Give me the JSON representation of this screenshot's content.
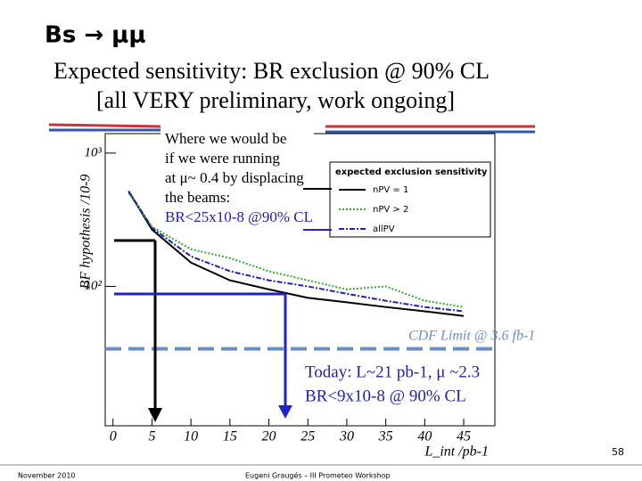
{
  "slide_title": "Bs → μμ",
  "heading": [
    "Expected sensitivity: BR exclusion @ 90% CL",
    "[all VERY preliminary, work ongoing]"
  ],
  "chart_data": {
    "type": "line",
    "x_label": "L_int /pb-1",
    "y_label": "BF hypothesis /10-9",
    "x": [
      2,
      5,
      10,
      15,
      20,
      25,
      30,
      35,
      40,
      45
    ],
    "xlim": [
      -1,
      49
    ],
    "xticks": [
      0,
      5,
      10,
      15,
      20,
      25,
      30,
      35,
      40,
      45
    ],
    "ylim": [
      9,
      1400
    ],
    "log_y": true,
    "yticks": [
      {
        "value": 100,
        "label": "10²"
      },
      {
        "value": 1000,
        "label": "10³"
      }
    ],
    "legend_title": "expected exclusion sensitivity",
    "series": [
      {
        "name": "nPV = 1",
        "color": "#000000",
        "dash": "",
        "values": [
          517,
          267,
          151,
          111,
          95,
          82,
          76,
          70,
          65,
          60
        ]
      },
      {
        "name": "nPV > 2",
        "color": "#33aa33",
        "dash": "2 2",
        "values": [
          500,
          280,
          190,
          163,
          130,
          111,
          95,
          100,
          78,
          70
        ]
      },
      {
        "name": "allPV",
        "color": "#2222aa",
        "dash": "6 2 2 2",
        "values": [
          520,
          275,
          168,
          130,
          111,
          100,
          88,
          78,
          70,
          65
        ]
      }
    ],
    "reference_line": {
      "label": "CDF Limit @ 3.6 fb-1",
      "value": 34,
      "color": "#6a8fbf"
    },
    "annotations": [
      {
        "lines": [
          "Where we would be",
          "if we were running",
          "at μ~ 0.4 by displacing",
          "the beams:",
          "BR<25x10-8 @90% CL"
        ]
      },
      {
        "lines": [
          "Today: L~21 pb-1, μ ~2.3",
          "BR<9x10-8 @ 90% CL"
        ]
      }
    ]
  },
  "footer": {
    "date": "November 2010",
    "author": "Eugeni Graugés – III Prometeo Workshop",
    "page": "58"
  }
}
